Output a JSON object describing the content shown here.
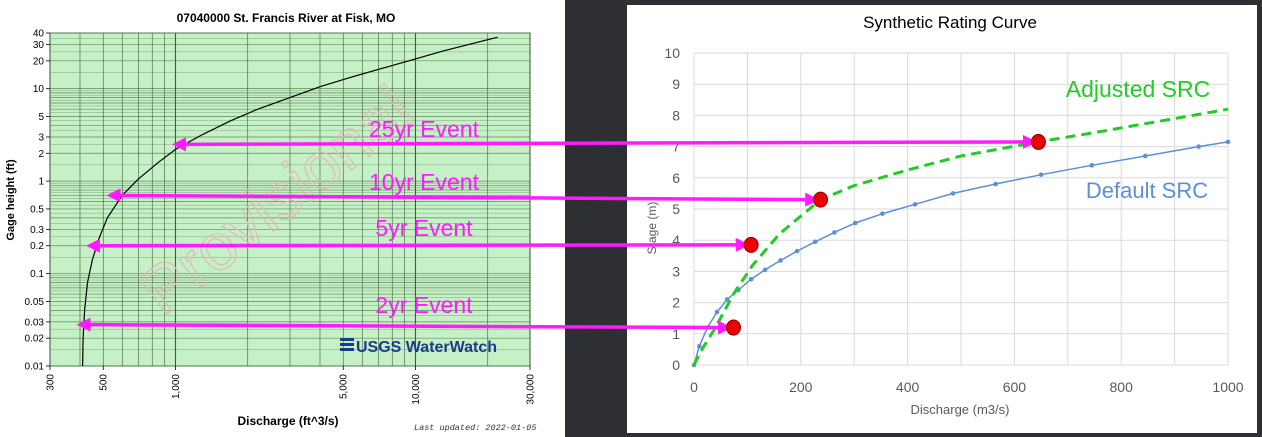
{
  "left_chart": {
    "title": "07040000 St. Francis River at Fisk, MO",
    "ylabel": "Gage height (ft)",
    "xlabel": "Discharge (ft^3/s)",
    "y_tick_labels": [
      {
        "v": 40,
        "label": "40"
      },
      {
        "v": 30,
        "label": "30"
      },
      {
        "v": 20,
        "label": "20"
      },
      {
        "v": 10,
        "label": "10"
      },
      {
        "v": 5,
        "label": "5"
      },
      {
        "v": 3,
        "label": "3"
      },
      {
        "v": 2,
        "label": "2"
      },
      {
        "v": 1,
        "label": "1"
      },
      {
        "v": 0.5,
        "label": "0.5"
      },
      {
        "v": 0.3,
        "label": "0.3"
      },
      {
        "v": 0.2,
        "label": "0.2"
      },
      {
        "v": 0.1,
        "label": "0.1"
      },
      {
        "v": 0.05,
        "label": "0.05"
      },
      {
        "v": 0.03,
        "label": "0.03"
      },
      {
        "v": 0.02,
        "label": "0.02"
      },
      {
        "v": 0.01,
        "label": "0.01"
      }
    ],
    "x_tick_labels": [
      {
        "v": 300,
        "label": "300"
      },
      {
        "v": 500,
        "label": "500"
      },
      {
        "v": 1000,
        "label": "1,000"
      },
      {
        "v": 5000,
        "label": "5,000"
      },
      {
        "v": 10000,
        "label": "10,000"
      },
      {
        "v": 30000,
        "label": "30,000"
      }
    ],
    "watermark": "Provisional",
    "logo_text": "USGS WaterWatch",
    "updated": "Last updated: 2022-01-05",
    "colors": {
      "plot_bg": "#c6f0c6",
      "grid": "#5e8a5e",
      "curve": "#000000"
    }
  },
  "right_chart": {
    "title": "Synthetic Rating Curve",
    "ylabel": "Stage (m)",
    "xlabel": "Discharge (m3/s)",
    "adjusted_label": "Adjusted SRC",
    "default_label": "Default SRC",
    "y_ticks": [
      "0",
      "1",
      "2",
      "3",
      "4",
      "5",
      "6",
      "7",
      "8",
      "9",
      "10"
    ],
    "x_ticks": [
      "0",
      "200",
      "400",
      "600",
      "800",
      "1000"
    ],
    "colors": {
      "adjusted": "#22cc22",
      "default": "#5b8fd6",
      "events": "#ee0000"
    }
  },
  "events": [
    {
      "label": "25yr Event",
      "stage_m": 7.15,
      "discharge_m3s": 645
    },
    {
      "label": "10yr Event",
      "stage_m": 5.3,
      "discharge_m3s": 237
    },
    {
      "label": "5yr Event",
      "stage_m": 3.85,
      "discharge_m3s": 107
    },
    {
      "label": "2yr Event",
      "stage_m": 1.2,
      "discharge_m3s": 74
    }
  ],
  "arrow_color": "#ff1aff",
  "chart_data": [
    {
      "type": "line",
      "title": "07040000 St. Francis River at Fisk, MO",
      "xlabel": "Discharge (ft^3/s)",
      "ylabel": "Gage height (ft)",
      "x_scale": "log",
      "y_scale": "log",
      "xlim": [
        300,
        30000
      ],
      "ylim": [
        0.01,
        40
      ],
      "grid": true,
      "series": [
        {
          "x": [
            410,
            412,
            418,
            430,
            450,
            480,
            520,
            600,
            700,
            850,
            1000,
            1300,
            1700,
            2200,
            3000,
            4000,
            5500,
            7500,
            10000,
            13000,
            17000,
            22000
          ],
          "y": [
            0.01,
            0.02,
            0.04,
            0.08,
            0.14,
            0.24,
            0.4,
            0.7,
            1.05,
            1.6,
            2.2,
            3.2,
            4.5,
            6.0,
            8.0,
            10.5,
            13.5,
            17.0,
            21.0,
            25.5,
            30.5,
            36.0
          ]
        }
      ],
      "event_markers": [
        {
          "label": "25yr Event",
          "x": 1050,
          "y": 2.5
        },
        {
          "label": "10yr Event",
          "x": 560,
          "y": 0.7
        },
        {
          "label": "5yr Event",
          "x": 460,
          "y": 0.2
        },
        {
          "label": "2yr Event",
          "x": 420,
          "y": 0.028
        }
      ]
    },
    {
      "type": "line",
      "title": "Synthetic Rating Curve",
      "xlabel": "Discharge (m3/s)",
      "ylabel": "Stage (m)",
      "xlim": [
        0,
        1000
      ],
      "ylim": [
        0,
        10
      ],
      "grid": true,
      "series": [
        {
          "name": "Default SRC",
          "x": [
            0,
            10,
            25,
            43,
            62,
            83,
            107,
            133,
            162,
            193,
            227,
            263,
            302,
            353,
            414,
            485,
            565,
            650,
            745,
            845,
            945,
            1000
          ],
          "y": [
            0,
            0.6,
            1.2,
            1.7,
            2.1,
            2.4,
            2.75,
            3.05,
            3.35,
            3.65,
            3.95,
            4.25,
            4.55,
            4.85,
            5.15,
            5.5,
            5.8,
            6.1,
            6.4,
            6.7,
            7.0,
            7.15
          ]
        },
        {
          "name": "Adjusted SRC",
          "x": [
            0,
            15,
            40,
            75,
            110,
            160,
            237,
            300,
            400,
            500,
            645,
            750,
            850,
            1000
          ],
          "y": [
            0,
            0.5,
            1.2,
            2.3,
            3.2,
            4.2,
            5.3,
            5.75,
            6.25,
            6.7,
            7.15,
            7.45,
            7.75,
            8.2
          ]
        }
      ],
      "event_points": [
        {
          "label": "25yr Event",
          "x": 645,
          "y": 7.15
        },
        {
          "label": "10yr Event",
          "x": 237,
          "y": 5.3
        },
        {
          "label": "5yr Event",
          "x": 107,
          "y": 3.85
        },
        {
          "label": "2yr Event",
          "x": 74,
          "y": 1.2
        }
      ]
    }
  ]
}
